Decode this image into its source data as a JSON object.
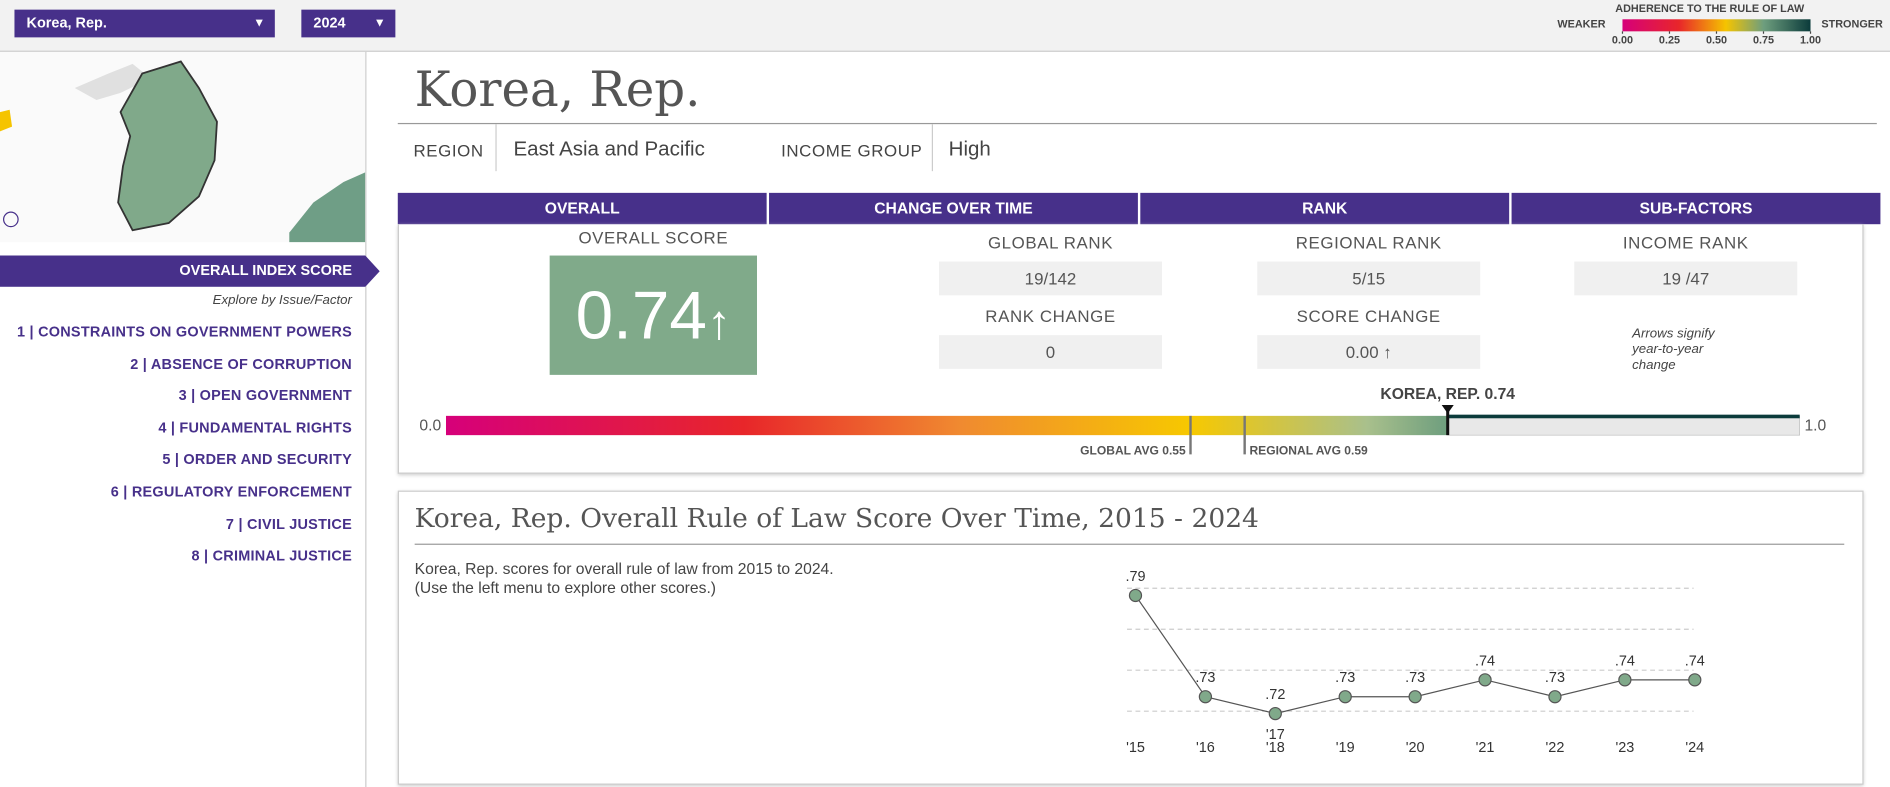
{
  "selectors": {
    "country": "Korea, Rep.",
    "year": "2024"
  },
  "legend": {
    "title": "ADHERENCE TO THE RULE OF LAW",
    "low": "WEAKER",
    "high": "STRONGER",
    "ticks": [
      {
        "value": 0,
        "label": "0.00"
      },
      {
        "value": 0.25,
        "label": "0.25"
      },
      {
        "value": 0.5,
        "label": "0.50"
      },
      {
        "value": 0.75,
        "label": "0.75"
      },
      {
        "value": 1,
        "label": "1.00"
      }
    ]
  },
  "sidebar": {
    "active": "OVERALL INDEX SCORE",
    "subtitle": "Explore by Issue/Factor",
    "factors": [
      "1 | CONSTRAINTS ON GOVERNMENT POWERS",
      "2 | ABSENCE OF CORRUPTION",
      "3 | OPEN GOVERNMENT",
      "4 | FUNDAMENTAL RIGHTS",
      "5 | ORDER AND SECURITY",
      "6 | REGULATORY ENFORCEMENT",
      "7 | CIVIL JUSTICE",
      "8 | CRIMINAL JUSTICE"
    ]
  },
  "header": {
    "country": "Korea, Rep.",
    "region_label": "REGION",
    "region": "East Asia and Pacific",
    "income_label": "INCOME GROUP",
    "income": "High"
  },
  "tabs": [
    "OVERALL",
    "CHANGE OVER TIME",
    "RANK",
    "SUB-FACTORS"
  ],
  "overall": {
    "label": "OVERALL SCORE",
    "score": "0.74"
  },
  "ranks": {
    "global_rank_label": "GLOBAL RANK",
    "global_rank": "19/142",
    "regional_rank_label": "REGIONAL RANK",
    "regional_rank": "5/15",
    "income_rank_label": "INCOME RANK",
    "income_rank": "19 /47",
    "rank_change_label": "RANK CHANGE",
    "rank_change": "0",
    "score_change_label": "SCORE CHANGE",
    "score_change": "0.00",
    "note": "Arrows signify year-to-year change"
  },
  "scale": {
    "xlim": [
      0,
      1
    ],
    "xticks": [
      {
        "value": 0,
        "label": "0.0"
      },
      {
        "value": 1,
        "label": "1.0"
      }
    ],
    "score": 0.74,
    "score_label": "KOREA, REP. 0.74",
    "global_avg": 0.55,
    "global_avg_label": "GLOBAL AVG 0.55",
    "regional_avg": 0.59,
    "regional_avg_label": "REGIONAL AVG 0.59"
  },
  "trend": {
    "type": "line",
    "title": "Korea, Rep. Overall Rule of Law Score Over Time, 2015 - 2024",
    "description": "Korea, Rep. scores for overall rule of law from 2015 to 2024.",
    "hint": "(Use the left menu to explore other scores.)",
    "categories": [
      "'15",
      "'16",
      "'18",
      "'19",
      "'20",
      "'21",
      "'22",
      "'23",
      "'24"
    ],
    "values": [
      0.79,
      0.73,
      0.72,
      0.73,
      0.73,
      0.74,
      0.73,
      0.74,
      0.74
    ],
    "value_labels": [
      ".79",
      ".73",
      ".72",
      ".73",
      ".73",
      ".74",
      ".73",
      ".74",
      ".74"
    ],
    "point_note": "'17",
    "ylim": [
      0.71,
      0.8
    ],
    "color": "#80a98a"
  }
}
